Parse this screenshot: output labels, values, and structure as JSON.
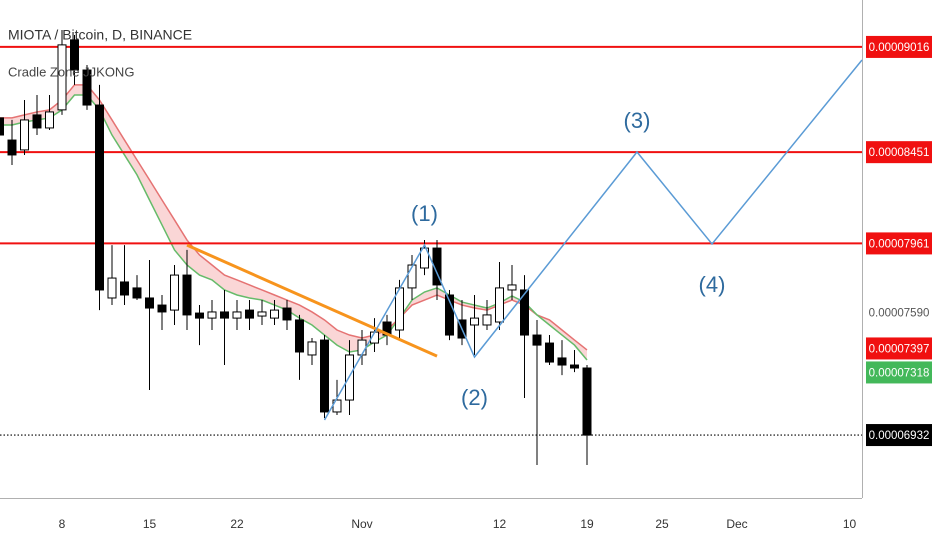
{
  "chart_data": {
    "type": "candlestick",
    "title": "MIOTA / Bitcoin, D, BINANCE",
    "subtitle": "Cradle Zone JJKONG",
    "categories": [
      null,
      null,
      null,
      null,
      null,
      "8",
      null,
      null,
      null,
      null,
      null,
      null,
      "15",
      null,
      null,
      null,
      null,
      null,
      null,
      "22",
      null,
      null,
      null,
      null,
      null,
      null,
      null,
      null,
      null,
      "Nov",
      null,
      null,
      null,
      null,
      null,
      null,
      null,
      null,
      null,
      null,
      "12",
      null,
      null,
      null,
      null,
      null,
      null,
      "19",
      null,
      null,
      null,
      null,
      null,
      "25",
      null,
      null,
      null,
      null,
      null,
      "Dec",
      null,
      null,
      null,
      null,
      null,
      null,
      null,
      null,
      "10",
      null
    ],
    "open": [
      8.635e-05,
      8.516e-05,
      8.463e-05,
      8.651e-05,
      8.581e-05,
      8.678e-05,
      9.054e-05,
      8.892e-05,
      8.704e-05,
      7.668e-05,
      7.754e-05,
      7.722e-05,
      7.668e-05,
      7.63e-05,
      7.603e-05,
      7.791e-05,
      7.587e-05,
      7.56e-05,
      7.593e-05,
      7.56e-05,
      7.603e-05,
      7.571e-05,
      7.56e-05,
      7.614e-05,
      7.55e-05,
      7.362e-05,
      7.442e-05,
      7.056e-05,
      7.12e-05,
      7.362e-05,
      7.426e-05,
      7.539e-05,
      7.496e-05,
      7.722e-05,
      7.829e-05,
      7.936e-05,
      7.684e-05,
      7.55e-05,
      7.523e-05,
      7.523e-05,
      7.539e-05,
      7.711e-05,
      7.711e-05,
      7.469e-05,
      7.426e-05,
      7.346e-05,
      7.308e-05,
      7.292e-05,
      null,
      null,
      null,
      null,
      null,
      null,
      null,
      null,
      null,
      null,
      null,
      null,
      null,
      null,
      null,
      null,
      null,
      null,
      null,
      null,
      null,
      null
    ],
    "high": [
      8.678e-05,
      8.624e-05,
      8.731e-05,
      8.758e-05,
      8.758e-05,
      9.107e-05,
      9.08e-05,
      8.919e-05,
      8.812e-05,
      7.952e-05,
      7.952e-05,
      7.791e-05,
      7.872e-05,
      7.684e-05,
      7.845e-05,
      7.926e-05,
      7.63e-05,
      7.657e-05,
      7.711e-05,
      7.657e-05,
      7.657e-05,
      7.657e-05,
      7.657e-05,
      7.657e-05,
      7.577e-05,
      7.453e-05,
      7.469e-05,
      7.228e-05,
      7.442e-05,
      7.496e-05,
      7.56e-05,
      7.577e-05,
      7.765e-05,
      7.899e-05,
      7.979e-05,
      7.979e-05,
      7.711e-05,
      7.657e-05,
      7.684e-05,
      7.657e-05,
      7.861e-05,
      7.845e-05,
      7.791e-05,
      7.55e-05,
      7.469e-05,
      7.442e-05,
      7.389e-05,
      7.308e-05,
      null,
      null,
      null,
      null,
      null,
      null,
      null,
      null,
      null,
      null,
      null,
      null,
      null,
      null,
      null,
      null,
      null,
      null,
      null,
      null,
      null,
      null
    ],
    "low": [
      8.516e-05,
      8.382e-05,
      8.436e-05,
      8.543e-05,
      8.57e-05,
      8.651e-05,
      8.812e-05,
      8.678e-05,
      7.603e-05,
      7.63e-05,
      7.63e-05,
      7.657e-05,
      7.174e-05,
      7.496e-05,
      7.523e-05,
      7.496e-05,
      7.415e-05,
      7.496e-05,
      7.308e-05,
      7.496e-05,
      7.496e-05,
      7.523e-05,
      7.523e-05,
      7.496e-05,
      7.228e-05,
      7.308e-05,
      7.023e-05,
      7.04e-05,
      7.04e-05,
      7.308e-05,
      7.378e-05,
      7.415e-05,
      7.442e-05,
      7.657e-05,
      7.791e-05,
      7.657e-05,
      7.442e-05,
      7.415e-05,
      7.362e-05,
      7.496e-05,
      7.496e-05,
      7.657e-05,
      7.131e-05,
      6.771e-05,
      7.308e-05,
      7.254e-05,
      7.27e-05,
      6.771e-05,
      null,
      null,
      null,
      null,
      null,
      null,
      null,
      null,
      null,
      null,
      null,
      null,
      null,
      null,
      null,
      null,
      null,
      null,
      null,
      null,
      null,
      null
    ],
    "close": [
      8.543e-05,
      8.436e-05,
      8.624e-05,
      8.581e-05,
      8.667e-05,
      9.027e-05,
      8.892e-05,
      8.704e-05,
      7.711e-05,
      7.775e-05,
      7.684e-05,
      7.668e-05,
      7.614e-05,
      7.593e-05,
      7.791e-05,
      7.577e-05,
      7.56e-05,
      7.593e-05,
      7.56e-05,
      7.593e-05,
      7.56e-05,
      7.593e-05,
      7.603e-05,
      7.55e-05,
      7.378e-05,
      7.432e-05,
      7.056e-05,
      7.12e-05,
      7.362e-05,
      7.442e-05,
      7.485e-05,
      7.469e-05,
      7.722e-05,
      7.845e-05,
      7.936e-05,
      7.738e-05,
      7.469e-05,
      7.453e-05,
      7.56e-05,
      7.577e-05,
      7.722e-05,
      7.738e-05,
      7.469e-05,
      7.415e-05,
      7.324e-05,
      7.308e-05,
      7.292e-05,
      6.932e-05,
      null,
      null,
      null,
      null,
      null,
      null,
      null,
      null,
      null,
      null,
      null,
      null,
      null,
      null,
      null,
      null,
      null,
      null,
      null,
      null,
      null,
      null
    ],
    "ribbon_upper": [
      8.635e-05,
      8.635e-05,
      8.651e-05,
      8.667e-05,
      8.678e-05,
      8.731e-05,
      8.812e-05,
      8.812e-05,
      8.731e-05,
      8.624e-05,
      8.516e-05,
      8.409e-05,
      8.302e-05,
      8.194e-05,
      8.087e-05,
      7.979e-05,
      7.899e-05,
      7.845e-05,
      7.791e-05,
      7.765e-05,
      7.738e-05,
      7.711e-05,
      7.684e-05,
      7.657e-05,
      7.63e-05,
      7.593e-05,
      7.55e-05,
      7.496e-05,
      7.469e-05,
      7.453e-05,
      7.469e-05,
      7.496e-05,
      7.56e-05,
      7.63e-05,
      7.657e-05,
      7.684e-05,
      7.657e-05,
      7.63e-05,
      7.614e-05,
      7.603e-05,
      7.63e-05,
      7.657e-05,
      7.63e-05,
      7.577e-05,
      7.55e-05,
      7.496e-05,
      7.442e-05,
      7.389e-05,
      null,
      null,
      null,
      null,
      null,
      null,
      null,
      null,
      null,
      null,
      null,
      null,
      null,
      null,
      null,
      null,
      null,
      null,
      null,
      null,
      null,
      null
    ],
    "ribbon_lower": [
      8.597e-05,
      8.597e-05,
      8.613e-05,
      8.624e-05,
      8.635e-05,
      8.678e-05,
      8.758e-05,
      8.758e-05,
      8.678e-05,
      8.543e-05,
      8.436e-05,
      8.329e-05,
      8.194e-05,
      8.06e-05,
      7.926e-05,
      7.845e-05,
      7.791e-05,
      7.765e-05,
      7.711e-05,
      7.684e-05,
      7.668e-05,
      7.657e-05,
      7.63e-05,
      7.603e-05,
      7.56e-05,
      7.523e-05,
      7.469e-05,
      7.415e-05,
      7.378e-05,
      7.389e-05,
      7.432e-05,
      7.469e-05,
      7.56e-05,
      7.657e-05,
      7.7e-05,
      7.722e-05,
      7.684e-05,
      7.646e-05,
      7.63e-05,
      7.614e-05,
      7.641e-05,
      7.679e-05,
      7.646e-05,
      7.577e-05,
      7.523e-05,
      7.469e-05,
      7.415e-05,
      7.335e-05,
      null,
      null,
      null,
      null,
      null,
      null,
      null,
      null,
      null,
      null,
      null,
      null,
      null,
      null,
      null,
      null,
      null,
      null,
      null,
      null,
      null,
      null
    ],
    "ribbon_upper_color": "#e57373",
    "ribbon_lower_color": "#66bb6a",
    "ribbon_fill": "rgba(239,120,120,0.3)",
    "ylim": [
      6.594e-05,
      9.268e-05
    ],
    "levels": [
      {
        "value": 9.016e-05,
        "label": "0.00009016"
      },
      {
        "value": 8.451e-05,
        "label": "0.00008451"
      },
      {
        "value": 7.961e-05,
        "label": "0.00007961"
      }
    ],
    "level_color": "#f01010",
    "price_labels": [
      {
        "value": 7.59e-05,
        "label": "0.00007590",
        "color": "#ffffff"
      },
      {
        "value": 7.397e-05,
        "label": "0.00007397",
        "color": "#f01010"
      },
      {
        "value": 7.318e-05,
        "label": "0.00007318",
        "color": "#43b85a"
      },
      {
        "value": 6.932e-05,
        "label": "0.00006932",
        "color": "#000000",
        "dotted": true
      }
    ],
    "trendline": {
      "at": [
        15,
        35
      ],
      "values": [
        7.952e-05,
        7.356e-05
      ],
      "color": "#f7941d"
    },
    "wave": {
      "at": [
        26,
        34,
        38,
        51,
        57,
        69
      ],
      "values": [
        7.013e-05,
        7.952e-05,
        7.351e-05,
        8.452e-05,
        7.958e-05,
        8.946e-05
      ],
      "labels": [
        null,
        "(1)",
        "(2)",
        "(3)",
        "(4)",
        null
      ],
      "color": "#5b9bd5",
      "label_color": "#2e6a9e"
    }
  }
}
